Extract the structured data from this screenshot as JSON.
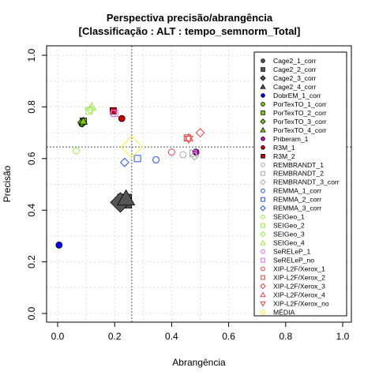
{
  "chart_data": {
    "type": "scatter",
    "title": "Perspectiva precisão/abrangência",
    "subtitle": "[Classificação : ALT : tempo_semnorm_Total]",
    "xlabel": "Abrangência",
    "ylabel": "Precisão",
    "xlim": [
      0,
      1
    ],
    "ylim": [
      0,
      1
    ],
    "xticks": [
      "0.0",
      "0.2",
      "0.4",
      "0.6",
      "0.8",
      "1.0"
    ],
    "yticks": [
      "0.0",
      "0.2",
      "0.4",
      "0.6",
      "0.8",
      "1.0"
    ],
    "grid": true,
    "reference_lines": {
      "x": 0.26,
      "y": 0.645
    },
    "legend_position": "right",
    "series": [
      {
        "name": "Cage2_1_corr",
        "shape": "circle",
        "color": "#555555",
        "filled": true,
        "x": 0.22,
        "y": 0.43,
        "size": 2.2
      },
      {
        "name": "Cage2_2_corr",
        "shape": "square",
        "color": "#555555",
        "filled": true,
        "x": 0.235,
        "y": 0.435,
        "size": 2.2
      },
      {
        "name": "Cage2_3_corr",
        "shape": "diamond",
        "color": "#555555",
        "filled": true,
        "x": 0.22,
        "y": 0.43,
        "size": 2.4
      },
      {
        "name": "Cage2_4_corr",
        "shape": "triangle",
        "color": "#555555",
        "filled": true,
        "x": 0.24,
        "y": 0.445,
        "size": 2.2
      },
      {
        "name": "DobrEM_1_corr",
        "shape": "circle",
        "color": "#0000ff",
        "filled": true,
        "x": 0.005,
        "y": 0.265,
        "size": 1
      },
      {
        "name": "PorTexTO_1_corr",
        "shape": "circle",
        "color": "#7fcc00",
        "filled": true,
        "x": 0.085,
        "y": 0.735,
        "size": 1
      },
      {
        "name": "PorTexTO_2_corr",
        "shape": "square",
        "color": "#7fcc00",
        "filled": true,
        "x": 0.09,
        "y": 0.745,
        "size": 1
      },
      {
        "name": "PorTexTO_3_corr",
        "shape": "diamond",
        "color": "#7fcc00",
        "filled": true,
        "x": 0.085,
        "y": 0.74,
        "size": 1
      },
      {
        "name": "PorTexTO_4_corr",
        "shape": "triangle",
        "color": "#7fcc00",
        "filled": true,
        "x": 0.09,
        "y": 0.745,
        "size": 1
      },
      {
        "name": "Priberam_1",
        "shape": "circle",
        "color": "#cc00cc",
        "filled": true,
        "x": 0.485,
        "y": 0.625,
        "size": 1
      },
      {
        "name": "R3M_1",
        "shape": "circle",
        "color": "#cc0000",
        "filled": true,
        "x": 0.225,
        "y": 0.755,
        "size": 1
      },
      {
        "name": "R3M_2",
        "shape": "square",
        "color": "#cc0000",
        "filled": true,
        "x": 0.195,
        "y": 0.785,
        "size": 1
      },
      {
        "name": "REMBRANDT_1",
        "shape": "circle",
        "color": "#aaaaaa",
        "filled": false,
        "x": 0.44,
        "y": 0.615,
        "size": 1
      },
      {
        "name": "REMBRANDT_2",
        "shape": "square",
        "color": "#aaaaaa",
        "filled": false,
        "x": 0.475,
        "y": 0.62,
        "size": 1
      },
      {
        "name": "REMBRANDT_3_corr",
        "shape": "diamond",
        "color": "#aaaaaa",
        "filled": false,
        "x": 0.48,
        "y": 0.61,
        "size": 1
      },
      {
        "name": "REMMA_1_corr",
        "shape": "circle",
        "color": "#2255ff",
        "filled": false,
        "x": 0.345,
        "y": 0.595,
        "size": 1
      },
      {
        "name": "REMMA_2_corr",
        "shape": "square",
        "color": "#2255ff",
        "filled": false,
        "x": 0.28,
        "y": 0.6,
        "size": 1
      },
      {
        "name": "REMMA_3_corr",
        "shape": "diamond",
        "color": "#2255ff",
        "filled": false,
        "x": 0.235,
        "y": 0.585,
        "size": 1
      },
      {
        "name": "SEIGeo_1",
        "shape": "circle",
        "color": "#99ee44",
        "filled": false,
        "x": 0.065,
        "y": 0.63,
        "size": 1
      },
      {
        "name": "SEIGeo_2",
        "shape": "square",
        "color": "#99ee44",
        "filled": false,
        "x": 0.11,
        "y": 0.785,
        "size": 1
      },
      {
        "name": "SEIGeo_3",
        "shape": "diamond",
        "color": "#99ee44",
        "filled": false,
        "x": 0.115,
        "y": 0.79,
        "size": 1
      },
      {
        "name": "SEIGeo_4",
        "shape": "triangle",
        "color": "#99ee44",
        "filled": false,
        "x": 0.12,
        "y": 0.8,
        "size": 1
      },
      {
        "name": "SeRELeP_1",
        "shape": "circle",
        "color": "#ee66ee",
        "filled": false,
        "x": 0.195,
        "y": 0.775,
        "size": 1
      },
      {
        "name": "SeRELeP_no",
        "shape": "square",
        "color": "#ee66ee",
        "filled": false,
        "x": 0.2,
        "y": 0.775,
        "size": 1
      },
      {
        "name": "XIP-L2F/Xerox_1",
        "shape": "circle",
        "color": "#ee4444",
        "filled": false,
        "x": 0.4,
        "y": 0.625,
        "size": 1
      },
      {
        "name": "XIP-L2F/Xerox_2",
        "shape": "square",
        "color": "#ee4444",
        "filled": false,
        "x": 0.455,
        "y": 0.68,
        "size": 1
      },
      {
        "name": "XIP-L2F/Xerox_3",
        "shape": "diamond",
        "color": "#ee4444",
        "filled": false,
        "x": 0.5,
        "y": 0.7,
        "size": 1
      },
      {
        "name": "XIP-L2F/Xerox_4",
        "shape": "triangle",
        "color": "#ee4444",
        "filled": false,
        "x": 0.46,
        "y": 0.68,
        "size": 1
      },
      {
        "name": "XIP-L2F/Xerox_no",
        "shape": "triangle-down",
        "color": "#ee4444",
        "filled": false,
        "x": 0.46,
        "y": 0.675,
        "size": 1
      },
      {
        "name": "MÉDIA",
        "shape": "diamond",
        "color": "#ffee33",
        "filled": false,
        "x": 0.26,
        "y": 0.645,
        "size": 2.6
      }
    ]
  }
}
